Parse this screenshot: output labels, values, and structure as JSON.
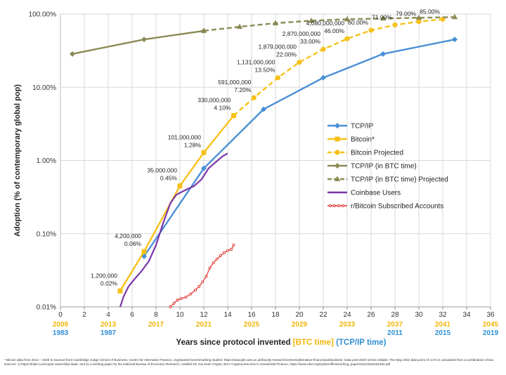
{
  "chart_data": {
    "type": "line",
    "yscale": "log",
    "ylabel": "Adoption (% of contemporary global pop)",
    "xlabel_main": "Years since protocol invented",
    "xlabel_btc": "[BTC time]",
    "xlabel_tcp": "(TCP/IP time)",
    "xlim": [
      0,
      36
    ],
    "ylim": [
      0.01,
      100
    ],
    "x_ticks": [
      "0",
      "2",
      "4",
      "6",
      "8",
      "10",
      "12",
      "14",
      "16",
      "18",
      "20",
      "22",
      "24",
      "26",
      "28",
      "30",
      "32",
      "34",
      "36"
    ],
    "y_ticks": [
      "0.01%",
      "0.10%",
      "1.00%",
      "10.00%",
      "100.00%"
    ],
    "btc_years": [
      {
        "x": 0,
        "label": "2009"
      },
      {
        "x": 4,
        "label": "2013"
      },
      {
        "x": 8,
        "label": "2017"
      },
      {
        "x": 12,
        "label": "2021"
      },
      {
        "x": 16,
        "label": "2025"
      },
      {
        "x": 20,
        "label": "2029"
      },
      {
        "x": 24,
        "label": "2033"
      },
      {
        "x": 28,
        "label": "2037"
      },
      {
        "x": 32,
        "label": "2041"
      },
      {
        "x": 36,
        "label": "2045"
      }
    ],
    "tcp_years": [
      {
        "x": 0,
        "label": "1983"
      },
      {
        "x": 4,
        "label": "1987"
      },
      {
        "x": 28,
        "label": "2011"
      },
      {
        "x": 32,
        "label": "2015"
      },
      {
        "x": 36,
        "label": "2019"
      }
    ],
    "series": [
      {
        "name": "TCP/IP",
        "color": "#4a8fd6",
        "dash": false,
        "marker": "diamond",
        "x": [
          7,
          12,
          17,
          22,
          27,
          33
        ],
        "y": [
          0.049,
          0.78,
          5.0,
          13.5,
          28.5,
          45
        ]
      },
      {
        "name": "Bitcoin*",
        "color": "#f7c11a",
        "dash": false,
        "marker": "square",
        "x": [
          5,
          7,
          10,
          12,
          14.5
        ],
        "y": [
          0.0165,
          0.057,
          0.45,
          1.28,
          4.1
        ]
      },
      {
        "name": "Bitcoin Projected",
        "color": "#f7c11a",
        "dash": true,
        "marker": "circle",
        "x": [
          14.5,
          16.2,
          18.2,
          20,
          22,
          24,
          26,
          28,
          30,
          32
        ],
        "y": [
          4.1,
          7.2,
          13.5,
          22.0,
          33.0,
          46.0,
          60.0,
          71.0,
          79.0,
          85.0
        ]
      },
      {
        "name": "TCP/IP (in BTC time)",
        "color": "#8b8a55",
        "dash": false,
        "marker": "diamond",
        "x": [
          1,
          7,
          12
        ],
        "y": [
          28.5,
          45,
          59
        ]
      },
      {
        "name": "TCP/IP (in BTC time) Projected",
        "color": "#8b8a55",
        "dash": true,
        "marker": "triangle",
        "x": [
          12,
          15,
          18,
          21,
          24,
          27,
          30,
          33
        ],
        "y": [
          59,
          67,
          75,
          81,
          85,
          87,
          89,
          91
        ]
      },
      {
        "name": "Coinbase Users",
        "color": "#7a35a8",
        "dash": false,
        "marker": "none",
        "x": [
          5,
          5.3,
          5.7,
          6.2,
          6.8,
          7.4,
          8.0,
          8.6,
          9.2,
          9.7,
          10.4,
          11.2,
          11.8,
          12.4,
          13.0,
          13.6,
          14.0
        ],
        "y": [
          0.01,
          0.014,
          0.019,
          0.024,
          0.031,
          0.042,
          0.07,
          0.14,
          0.26,
          0.34,
          0.39,
          0.45,
          0.55,
          0.78,
          0.95,
          1.15,
          1.25
        ]
      },
      {
        "name": "r/Bitcoin Subscribed Accounts",
        "color": "#e0302a",
        "dash": false,
        "marker": "smallcircle",
        "x": [
          9.2,
          9.5,
          9.8,
          10.1,
          10.5,
          10.9,
          11.3,
          11.6,
          11.9,
          12.2,
          12.5,
          12.8,
          13.1,
          13.4,
          13.7,
          14.0,
          14.3,
          14.5
        ],
        "y": [
          0.01,
          0.0112,
          0.0124,
          0.013,
          0.0136,
          0.015,
          0.017,
          0.019,
          0.022,
          0.026,
          0.034,
          0.04,
          0.045,
          0.05,
          0.055,
          0.059,
          0.061,
          0.07
        ]
      }
    ],
    "annotations": [
      {
        "x": 5,
        "y": 0.0165,
        "count": "1,200,000",
        "pct": "0.02%"
      },
      {
        "x": 7,
        "y": 0.057,
        "count": "4,200,000",
        "pct": "0.06%"
      },
      {
        "x": 10,
        "y": 0.45,
        "count": "35,000,000",
        "pct": "0.45%"
      },
      {
        "x": 12,
        "y": 1.28,
        "count": "101,000,000",
        "pct": "1.28%"
      },
      {
        "x": 14.5,
        "y": 4.1,
        "count": "330,000,000",
        "pct": "4.10%"
      },
      {
        "x": 16.2,
        "y": 7.2,
        "count": "591,000,000",
        "pct": "7.20%"
      },
      {
        "x": 18.2,
        "y": 13.5,
        "count": "1,131,000,000",
        "pct": "13.50%"
      },
      {
        "x": 20,
        "y": 22.0,
        "count": "1,879,000,000",
        "pct": "22.00%"
      },
      {
        "x": 22,
        "y": 33.0,
        "count": "2,870,000,000",
        "pct": "33.00%"
      },
      {
        "x": 24,
        "y": 46.0,
        "count": "4,080,000,000",
        "pct": "46.00%"
      },
      {
        "x": 26,
        "y": 60.0,
        "count": "",
        "pct": "60.00%"
      },
      {
        "x": 28,
        "y": 71.0,
        "count": "",
        "pct": "71.00%"
      },
      {
        "x": 30,
        "y": 79.0,
        "count": "",
        "pct": "79.00%"
      },
      {
        "x": 32,
        "y": 85.0,
        "count": "",
        "pct": "85.00%"
      }
    ],
    "colors": {
      "btc_time": "#f2b60a",
      "tcp_time": "#2f8fd4",
      "grid": "#d9d9d9"
    }
  },
  "footnote": "* Bitcoin data from 2014 – 2020 is sourced from Cambridge Judge School of Business, Centre for Alternative Finance, cryptoasset benchmarking studies: https://www.jbs.cam.ac.uk/faculty-research/centres/alternative-finance/publications/. Data post-2020 is less reliable. The May 2022 data point of 4.1% is calculated from a combination of two sources: 1) https://triple-a.io/crypto-ownership-data/, and 2) a working paper by the National Bureau of Economic Research, entitled Do You Even Crypto, Bro? Cryptocurrencies in Household Finance, https://www.nber.org/system/files/working_papers/w31284/w31284.pdf"
}
